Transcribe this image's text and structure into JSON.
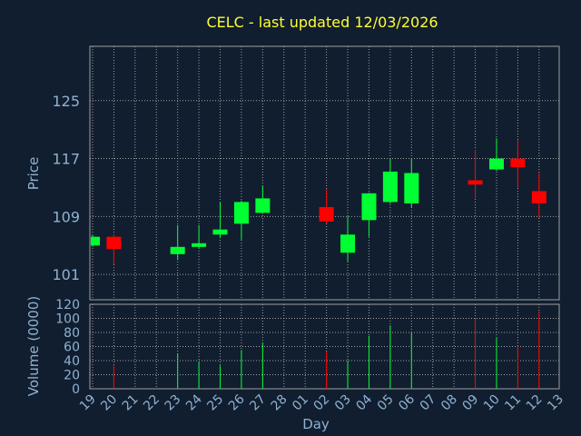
{
  "chart_data": {
    "type": "candlestick",
    "title": "CELC - last updated 12/03/2026",
    "price_panel": {
      "ylabel": "Price",
      "yticks": [
        101,
        109,
        117,
        125
      ],
      "ylim": [
        97.5,
        132.5
      ]
    },
    "volume_panel": {
      "ylabel": "Volume (0000)",
      "yticks": [
        0,
        20,
        40,
        60,
        80,
        100,
        120
      ],
      "ylim": [
        0,
        120
      ]
    },
    "xlabel": "Day",
    "x_tick_labels": [
      "19",
      "20",
      "21",
      "22",
      "23",
      "24",
      "25",
      "26",
      "27",
      "28",
      "01",
      "02",
      "03",
      "04",
      "05",
      "06",
      "07",
      "08",
      "09",
      "10",
      "11",
      "12",
      "13"
    ],
    "colors": {
      "up": "#00ff33",
      "down": "#ff0000",
      "background": "#111e2f",
      "grid": "#a0a0a0",
      "title": "#ffff33",
      "text": "#8fb2d1"
    },
    "candles": [
      {
        "x": 0,
        "open": 105.0,
        "close": 106.2,
        "high": 106.5,
        "low": 104.8,
        "volume": 0
      },
      {
        "x": 1,
        "open": 106.2,
        "close": 104.5,
        "high": 106.5,
        "low": 102.4,
        "volume": 33
      },
      {
        "x": 4,
        "open": 103.8,
        "close": 104.8,
        "high": 107.8,
        "low": 103.0,
        "volume": 50
      },
      {
        "x": 5,
        "open": 104.8,
        "close": 105.3,
        "high": 107.8,
        "low": 104.6,
        "volume": 38
      },
      {
        "x": 6,
        "open": 106.5,
        "close": 107.2,
        "high": 111.0,
        "low": 106.0,
        "volume": 33
      },
      {
        "x": 7,
        "open": 108.0,
        "close": 111.0,
        "high": 111.2,
        "low": 105.8,
        "volume": 55
      },
      {
        "x": 8,
        "open": 109.5,
        "close": 111.5,
        "high": 113.2,
        "low": 109.4,
        "volume": 65
      },
      {
        "x": 11,
        "open": 110.3,
        "close": 108.3,
        "high": 112.8,
        "low": 108.0,
        "volume": 53
      },
      {
        "x": 12,
        "open": 104.0,
        "close": 106.5,
        "high": 109.0,
        "low": 102.8,
        "volume": 40
      },
      {
        "x": 13,
        "open": 108.5,
        "close": 112.2,
        "high": 112.3,
        "low": 106.2,
        "volume": 75
      },
      {
        "x": 14,
        "open": 111.0,
        "close": 115.2,
        "high": 117.0,
        "low": 110.8,
        "volume": 90
      },
      {
        "x": 15,
        "open": 110.8,
        "close": 115.0,
        "high": 117.0,
        "low": 110.2,
        "volume": 80
      },
      {
        "x": 18,
        "open": 114.0,
        "close": 113.4,
        "high": 118.2,
        "low": 111.5,
        "volume": 100
      },
      {
        "x": 19,
        "open": 115.5,
        "close": 117.0,
        "high": 119.8,
        "low": 115.3,
        "volume": 72
      },
      {
        "x": 20,
        "open": 117.0,
        "close": 115.8,
        "high": 119.5,
        "low": 113.0,
        "volume": 60
      },
      {
        "x": 21,
        "open": 112.5,
        "close": 110.8,
        "high": 115.0,
        "low": 108.8,
        "volume": 110
      }
    ]
  }
}
